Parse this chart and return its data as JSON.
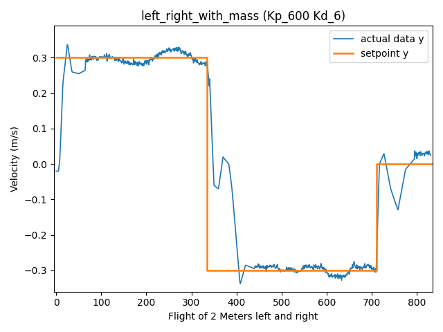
{
  "title": "left_right_with_mass (Kp_600 Kd_6)",
  "xlabel": "Flight of 2 Meters left and right",
  "ylabel": "Velocity (m/s)",
  "legend_actual": "actual data y",
  "legend_setpoint": "setpoint y",
  "color_actual": "#1f77b4",
  "color_setpoint": "#ff7f0e",
  "linewidth_actual": 1.2,
  "linewidth_setpoint": 1.8,
  "ylim": [
    -0.36,
    0.39
  ],
  "xlim": [
    -5,
    835
  ],
  "setpoint_x": [
    0,
    335,
    335,
    710,
    710,
    835
  ],
  "setpoint_y": [
    0.3,
    0.3,
    -0.3,
    -0.3,
    0.0,
    0.0
  ]
}
